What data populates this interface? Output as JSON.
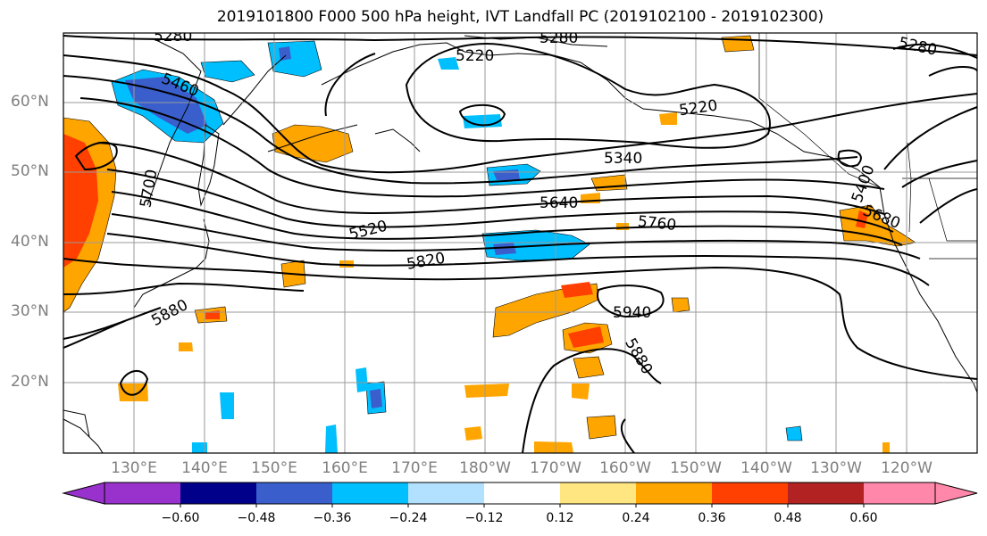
{
  "title": "2019101800 F000 500 hPa height, IVT Landfall PC (2019102100 - 2019102300)",
  "lat_labels": [
    "60°N",
    "50°N",
    "40°N",
    "30°N",
    "20°N"
  ],
  "lon_labels": [
    "130°E",
    "140°E",
    "150°E",
    "160°E",
    "170°E",
    "180°W",
    "170°W",
    "160°W",
    "150°W",
    "140°W",
    "130°W",
    "120°W"
  ],
  "contour_labels": [
    {
      "text": "5280"
    },
    {
      "text": "5280"
    },
    {
      "text": "5280"
    },
    {
      "text": "5220"
    },
    {
      "text": "5220"
    },
    {
      "text": "5460"
    },
    {
      "text": "5340"
    },
    {
      "text": "5640"
    },
    {
      "text": "5520"
    },
    {
      "text": "5760"
    },
    {
      "text": "5680"
    },
    {
      "text": "5820"
    },
    {
      "text": "5880"
    },
    {
      "text": "5940"
    },
    {
      "text": "5880"
    },
    {
      "text": "5400"
    },
    {
      "text": "5700"
    }
  ],
  "colorbar": {
    "colors": [
      "#9932cc",
      "#00008b",
      "#3a5fcd",
      "#00bfff",
      "#b2e0ff",
      "#ffffff",
      "#ffe680",
      "#ffa500",
      "#ff4000",
      "#b22222",
      "#ff88aa"
    ],
    "tick_labels": [
      "−0.60",
      "−0.48",
      "−0.36",
      "−0.24",
      "−0.12",
      "0.12",
      "0.24",
      "0.36",
      "0.48",
      "0.60"
    ]
  }
}
